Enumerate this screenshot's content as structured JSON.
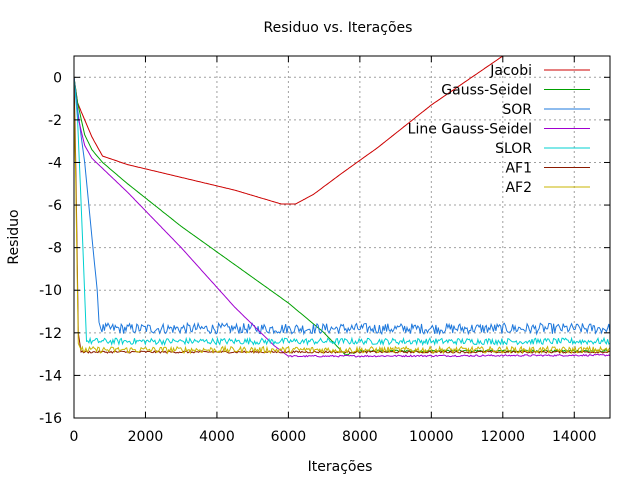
{
  "chart_data": {
    "type": "line",
    "title": "Residuo vs. Iterações",
    "xlabel": "Iterações",
    "ylabel": "Residuo",
    "xlim": [
      0,
      15000
    ],
    "ylim": [
      -16,
      1
    ],
    "xticks": [
      0,
      2000,
      4000,
      6000,
      8000,
      10000,
      12000,
      14000
    ],
    "yticks": [
      0,
      -2,
      -4,
      -6,
      -8,
      -10,
      -12,
      -14,
      -16
    ],
    "xtick_labels": [
      "0",
      "2000",
      "4000",
      "6000",
      "8000",
      "10000",
      "12000",
      "14000"
    ],
    "ytick_labels": [
      "0",
      "-2",
      "-4",
      "-6",
      "-8",
      "-10",
      "-12",
      "-14",
      "-16"
    ],
    "grid": true,
    "legend_position": "top-right",
    "series": [
      {
        "name": "Jacobi",
        "color": "#cc0000",
        "points": [
          [
            0,
            0
          ],
          [
            100,
            -1.2
          ],
          [
            300,
            -2
          ],
          [
            500,
            -2.8
          ],
          [
            800,
            -3.7
          ],
          [
            1500,
            -4.1
          ],
          [
            3000,
            -4.7
          ],
          [
            4500,
            -5.3
          ],
          [
            5800,
            -5.95
          ],
          [
            6200,
            -5.95
          ],
          [
            6700,
            -5.5
          ],
          [
            7500,
            -4.5
          ],
          [
            8500,
            -3.3
          ],
          [
            10000,
            -1.3
          ],
          [
            12000,
            1
          ]
        ],
        "noise": 0
      },
      {
        "name": "Gauss-Seidel",
        "color": "#00a000",
        "points": [
          [
            0,
            0
          ],
          [
            100,
            -1.2
          ],
          [
            300,
            -2.7
          ],
          [
            500,
            -3.4
          ],
          [
            800,
            -4.0
          ],
          [
            1500,
            -5.0
          ],
          [
            3000,
            -7.0
          ],
          [
            4500,
            -8.8
          ],
          [
            6000,
            -10.6
          ],
          [
            7000,
            -12
          ],
          [
            7600,
            -13.05
          ],
          [
            8000,
            -12.85
          ],
          [
            15000,
            -12.85
          ]
        ],
        "noise": 0.05
      },
      {
        "name": "SOR",
        "color": "#1e78dc",
        "points": [
          [
            0,
            0
          ],
          [
            100,
            -1.5
          ],
          [
            300,
            -4
          ],
          [
            500,
            -7.5
          ],
          [
            650,
            -10
          ],
          [
            700,
            -11.5
          ],
          [
            750,
            -11.8
          ],
          [
            15000,
            -11.8
          ]
        ],
        "noise": 0.25
      },
      {
        "name": "Line Gauss-Seidel",
        "color": "#a000d0",
        "points": [
          [
            0,
            0
          ],
          [
            100,
            -1.8
          ],
          [
            300,
            -3.2
          ],
          [
            500,
            -3.8
          ],
          [
            1500,
            -5.4
          ],
          [
            3000,
            -8.0
          ],
          [
            4500,
            -10.8
          ],
          [
            5600,
            -12.6
          ],
          [
            6000,
            -13.1
          ],
          [
            6300,
            -13.1
          ],
          [
            15000,
            -13.05
          ]
        ],
        "noise": 0.04
      },
      {
        "name": "SLOR",
        "color": "#00d0d0",
        "points": [
          [
            0,
            0
          ],
          [
            100,
            -2
          ],
          [
            250,
            -8
          ],
          [
            350,
            -12.4
          ],
          [
            15000,
            -12.4
          ]
        ],
        "noise": 0.15
      },
      {
        "name": "AF1",
        "color": "#8b1a00",
        "points": [
          [
            0,
            0
          ],
          [
            60,
            -5
          ],
          [
            120,
            -12
          ],
          [
            200,
            -12.9
          ],
          [
            15000,
            -12.9
          ]
        ],
        "noise": 0.05
      },
      {
        "name": "AF2",
        "color": "#c8b400",
        "points": [
          [
            0,
            -1
          ],
          [
            50,
            -5
          ],
          [
            120,
            -12.5
          ],
          [
            200,
            -12.8
          ],
          [
            15000,
            -12.8
          ]
        ],
        "noise": 0.15
      }
    ]
  }
}
